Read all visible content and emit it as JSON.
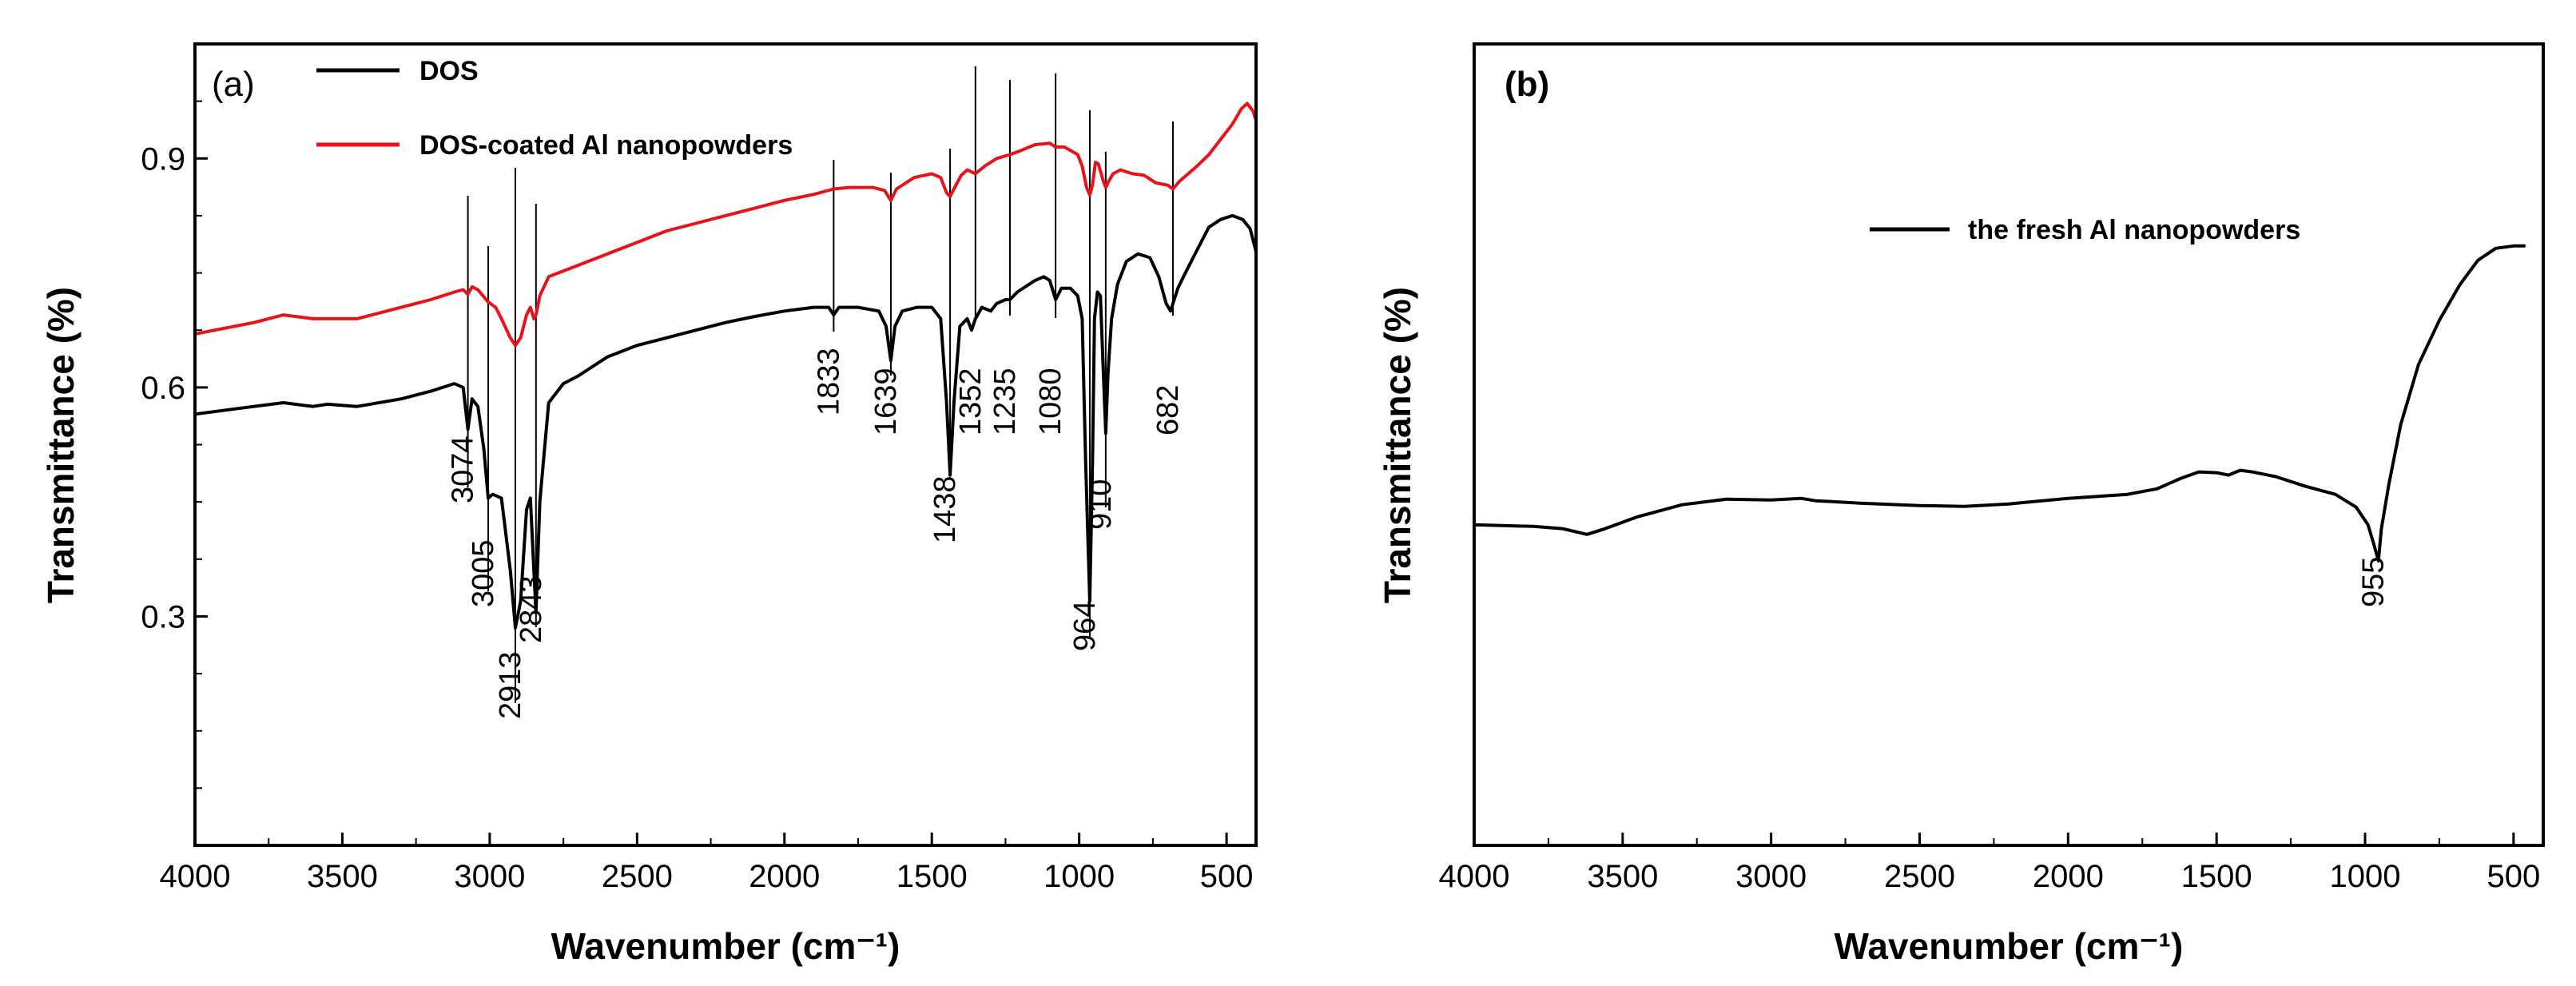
{
  "chart_data": [
    {
      "panel": "(a)",
      "type": "line",
      "xlabel": "Wavenumber (cm⁻¹)",
      "ylabel": "Transmittance (%)",
      "xlim": [
        4000,
        400
      ],
      "ylim": [
        0.0,
        1.05
      ],
      "xticks": [
        4000,
        3500,
        3000,
        2500,
        2000,
        1500,
        1000,
        500
      ],
      "yticks": [
        0.3,
        0.6,
        0.9
      ],
      "legend_position": "top-left",
      "series": [
        {
          "name": "DOS",
          "color": "#000000",
          "points": [
            [
              4000,
              0.565
            ],
            [
              3800,
              0.575
            ],
            [
              3700,
              0.58
            ],
            [
              3600,
              0.575
            ],
            [
              3550,
              0.578
            ],
            [
              3450,
              0.575
            ],
            [
              3300,
              0.585
            ],
            [
              3200,
              0.595
            ],
            [
              3120,
              0.605
            ],
            [
              3090,
              0.6
            ],
            [
              3074,
              0.545
            ],
            [
              3060,
              0.585
            ],
            [
              3040,
              0.575
            ],
            [
              3020,
              0.52
            ],
            [
              3005,
              0.455
            ],
            [
              2990,
              0.46
            ],
            [
              2960,
              0.455
            ],
            [
              2930,
              0.36
            ],
            [
              2913,
              0.285
            ],
            [
              2895,
              0.32
            ],
            [
              2875,
              0.44
            ],
            [
              2862,
              0.455
            ],
            [
              2850,
              0.36
            ],
            [
              2843,
              0.305
            ],
            [
              2830,
              0.45
            ],
            [
              2800,
              0.58
            ],
            [
              2750,
              0.605
            ],
            [
              2700,
              0.615
            ],
            [
              2600,
              0.64
            ],
            [
              2500,
              0.655
            ],
            [
              2400,
              0.665
            ],
            [
              2300,
              0.675
            ],
            [
              2200,
              0.685
            ],
            [
              2100,
              0.693
            ],
            [
              2000,
              0.7
            ],
            [
              1900,
              0.705
            ],
            [
              1850,
              0.705
            ],
            [
              1833,
              0.695
            ],
            [
              1815,
              0.705
            ],
            [
              1750,
              0.705
            ],
            [
              1680,
              0.7
            ],
            [
              1655,
              0.68
            ],
            [
              1639,
              0.635
            ],
            [
              1625,
              0.68
            ],
            [
              1600,
              0.7
            ],
            [
              1550,
              0.705
            ],
            [
              1500,
              0.705
            ],
            [
              1470,
              0.69
            ],
            [
              1450,
              0.58
            ],
            [
              1438,
              0.485
            ],
            [
              1425,
              0.58
            ],
            [
              1405,
              0.68
            ],
            [
              1380,
              0.69
            ],
            [
              1365,
              0.675
            ],
            [
              1352,
              0.69
            ],
            [
              1330,
              0.705
            ],
            [
              1300,
              0.7
            ],
            [
              1280,
              0.71
            ],
            [
              1250,
              0.715
            ],
            [
              1235,
              0.715
            ],
            [
              1210,
              0.725
            ],
            [
              1150,
              0.74
            ],
            [
              1120,
              0.745
            ],
            [
              1100,
              0.74
            ],
            [
              1080,
              0.715
            ],
            [
              1060,
              0.73
            ],
            [
              1030,
              0.73
            ],
            [
              1005,
              0.72
            ],
            [
              990,
              0.69
            ],
            [
              978,
              0.5
            ],
            [
              964,
              0.32
            ],
            [
              955,
              0.5
            ],
            [
              948,
              0.69
            ],
            [
              938,
              0.725
            ],
            [
              928,
              0.72
            ],
            [
              918,
              0.62
            ],
            [
              910,
              0.54
            ],
            [
              902,
              0.62
            ],
            [
              890,
              0.69
            ],
            [
              870,
              0.735
            ],
            [
              840,
              0.765
            ],
            [
              800,
              0.775
            ],
            [
              760,
              0.77
            ],
            [
              730,
              0.745
            ],
            [
              705,
              0.71
            ],
            [
              690,
              0.7
            ],
            [
              682,
              0.71
            ],
            [
              665,
              0.73
            ],
            [
              640,
              0.75
            ],
            [
              600,
              0.78
            ],
            [
              560,
              0.81
            ],
            [
              520,
              0.82
            ],
            [
              480,
              0.825
            ],
            [
              445,
              0.82
            ],
            [
              420,
              0.808
            ],
            [
              400,
              0.778
            ]
          ]
        },
        {
          "name": "DOS-coated Al nanopowders",
          "color": "#e8131a",
          "points": [
            [
              4000,
              0.67
            ],
            [
              3800,
              0.685
            ],
            [
              3700,
              0.695
            ],
            [
              3600,
              0.69
            ],
            [
              3450,
              0.69
            ],
            [
              3300,
              0.705
            ],
            [
              3200,
              0.715
            ],
            [
              3120,
              0.725
            ],
            [
              3090,
              0.728
            ],
            [
              3074,
              0.722
            ],
            [
              3060,
              0.732
            ],
            [
              3040,
              0.728
            ],
            [
              3005,
              0.712
            ],
            [
              2980,
              0.705
            ],
            [
              2960,
              0.69
            ],
            [
              2930,
              0.665
            ],
            [
              2913,
              0.655
            ],
            [
              2895,
              0.665
            ],
            [
              2875,
              0.695
            ],
            [
              2862,
              0.705
            ],
            [
              2850,
              0.69
            ],
            [
              2843,
              0.695
            ],
            [
              2830,
              0.72
            ],
            [
              2800,
              0.745
            ],
            [
              2700,
              0.76
            ],
            [
              2600,
              0.775
            ],
            [
              2500,
              0.79
            ],
            [
              2400,
              0.805
            ],
            [
              2300,
              0.815
            ],
            [
              2200,
              0.825
            ],
            [
              2100,
              0.835
            ],
            [
              2000,
              0.845
            ],
            [
              1900,
              0.853
            ],
            [
              1833,
              0.86
            ],
            [
              1780,
              0.862
            ],
            [
              1700,
              0.862
            ],
            [
              1660,
              0.858
            ],
            [
              1639,
              0.845
            ],
            [
              1620,
              0.86
            ],
            [
              1560,
              0.875
            ],
            [
              1500,
              0.88
            ],
            [
              1470,
              0.875
            ],
            [
              1450,
              0.855
            ],
            [
              1438,
              0.85
            ],
            [
              1425,
              0.86
            ],
            [
              1400,
              0.878
            ],
            [
              1380,
              0.885
            ],
            [
              1352,
              0.88
            ],
            [
              1320,
              0.89
            ],
            [
              1280,
              0.9
            ],
            [
              1235,
              0.905
            ],
            [
              1200,
              0.91
            ],
            [
              1150,
              0.918
            ],
            [
              1100,
              0.92
            ],
            [
              1080,
              0.915
            ],
            [
              1050,
              0.915
            ],
            [
              1005,
              0.905
            ],
            [
              990,
              0.89
            ],
            [
              975,
              0.862
            ],
            [
              964,
              0.852
            ],
            [
              955,
              0.865
            ],
            [
              945,
              0.895
            ],
            [
              935,
              0.893
            ],
            [
              918,
              0.87
            ],
            [
              910,
              0.862
            ],
            [
              900,
              0.87
            ],
            [
              885,
              0.88
            ],
            [
              860,
              0.885
            ],
            [
              820,
              0.88
            ],
            [
              780,
              0.878
            ],
            [
              740,
              0.868
            ],
            [
              700,
              0.865
            ],
            [
              682,
              0.86
            ],
            [
              660,
              0.87
            ],
            [
              630,
              0.88
            ],
            [
              600,
              0.89
            ],
            [
              560,
              0.905
            ],
            [
              520,
              0.925
            ],
            [
              480,
              0.945
            ],
            [
              450,
              0.965
            ],
            [
              430,
              0.972
            ],
            [
              410,
              0.962
            ],
            [
              400,
              0.95
            ]
          ]
        }
      ],
      "peak_labels": [
        {
          "label": "3074",
          "x": 3074
        },
        {
          "label": "3005",
          "x": 3005
        },
        {
          "label": "2913",
          "x": 2913
        },
        {
          "label": "2843",
          "x": 2843
        },
        {
          "label": "1833",
          "x": 1833
        },
        {
          "label": "1639",
          "x": 1639
        },
        {
          "label": "1438",
          "x": 1438
        },
        {
          "label": "1352",
          "x": 1352
        },
        {
          "label": "1235",
          "x": 1235
        },
        {
          "label": "1080",
          "x": 1080
        },
        {
          "label": "964",
          "x": 964
        },
        {
          "label": "910",
          "x": 910
        },
        {
          "label": "682",
          "x": 682
        }
      ]
    },
    {
      "panel": "(b)",
      "type": "line",
      "xlabel": "Wavenumber (cm⁻¹)",
      "ylabel": "Transmittance (%)",
      "xlim": [
        4000,
        400
      ],
      "ylim": [
        0.0,
        1.0
      ],
      "xticks": [
        4000,
        3500,
        3000,
        2500,
        2000,
        1500,
        1000,
        500
      ],
      "yticks": [],
      "legend_position": "top-center",
      "series": [
        {
          "name": "the fresh Al nanopowders",
          "color": "#000000",
          "points": [
            [
              4000,
              0.4
            ],
            [
              3800,
              0.398
            ],
            [
              3700,
              0.395
            ],
            [
              3620,
              0.388
            ],
            [
              3560,
              0.395
            ],
            [
              3450,
              0.41
            ],
            [
              3300,
              0.425
            ],
            [
              3150,
              0.432
            ],
            [
              3000,
              0.431
            ],
            [
              2900,
              0.433
            ],
            [
              2850,
              0.43
            ],
            [
              2700,
              0.427
            ],
            [
              2500,
              0.424
            ],
            [
              2350,
              0.423
            ],
            [
              2200,
              0.426
            ],
            [
              2000,
              0.433
            ],
            [
              1800,
              0.438
            ],
            [
              1700,
              0.445
            ],
            [
              1620,
              0.458
            ],
            [
              1560,
              0.466
            ],
            [
              1500,
              0.465
            ],
            [
              1460,
              0.462
            ],
            [
              1420,
              0.468
            ],
            [
              1380,
              0.466
            ],
            [
              1300,
              0.46
            ],
            [
              1200,
              0.448
            ],
            [
              1100,
              0.438
            ],
            [
              1030,
              0.422
            ],
            [
              990,
              0.4
            ],
            [
              970,
              0.375
            ],
            [
              955,
              0.355
            ],
            [
              945,
              0.395
            ],
            [
              920,
              0.45
            ],
            [
              880,
              0.525
            ],
            [
              820,
              0.6
            ],
            [
              750,
              0.655
            ],
            [
              680,
              0.7
            ],
            [
              620,
              0.73
            ],
            [
              560,
              0.745
            ],
            [
              500,
              0.748
            ],
            [
              460,
              0.748
            ]
          ]
        }
      ],
      "peak_labels": [
        {
          "label": "955",
          "x": 955
        }
      ]
    }
  ]
}
